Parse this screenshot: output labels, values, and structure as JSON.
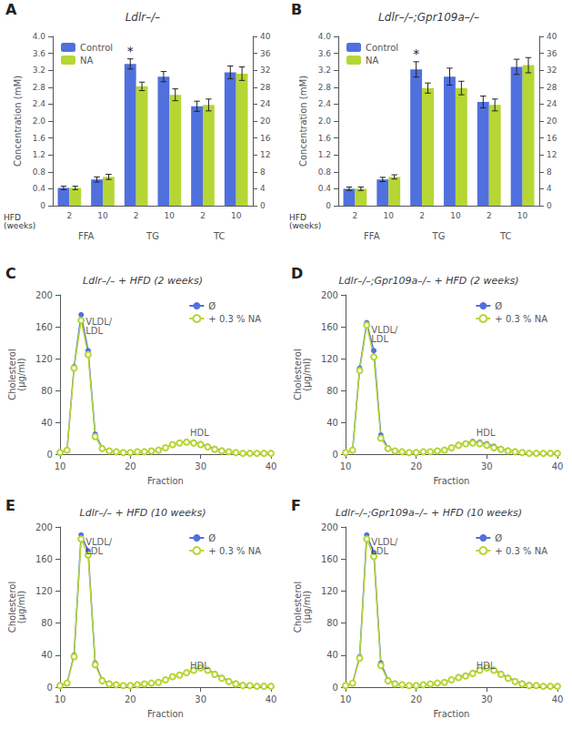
{
  "chart_data": [
    {
      "type": "bar",
      "panel": "A",
      "title": "Ldlr–/–",
      "categories": [
        "2",
        "10",
        "2",
        "10",
        "2",
        "10"
      ],
      "category_groups": [
        "FFA",
        "TG",
        "TC"
      ],
      "xlabel": "HFD\n(weeks)",
      "ylabel": "Concentration (mM)",
      "ylim": [
        0,
        4.0
      ],
      "yticks": [
        0,
        0.4,
        0.8,
        1.2,
        1.6,
        {
          "value": 2,
          "label": "2.0"
        },
        2.4,
        2.8,
        3.2,
        3.6,
        {
          "value": 4,
          "label": "4.0"
        }
      ],
      "y2lim": [
        0,
        40
      ],
      "y2ticks": [
        0,
        4,
        8,
        12,
        16,
        20,
        24,
        28,
        32,
        36,
        40
      ],
      "series": [
        {
          "name": "Control",
          "values": [
            0.42,
            0.62,
            3.35,
            3.05,
            2.35,
            3.15
          ],
          "errors": [
            0.04,
            0.06,
            0.12,
            0.12,
            0.12,
            0.15
          ]
        },
        {
          "name": "NA",
          "values": [
            0.42,
            0.68,
            2.82,
            2.62,
            2.38,
            3.12
          ],
          "errors": [
            0.04,
            0.06,
            0.1,
            0.14,
            0.14,
            0.16
          ]
        }
      ],
      "annotations": [
        {
          "text": "*",
          "series": "Control",
          "index": 2
        }
      ],
      "legend": "upper left",
      "grid": false
    },
    {
      "type": "bar",
      "panel": "B",
      "title": "Ldlr–/–;Gpr109a–/–",
      "categories": [
        "2",
        "10",
        "2",
        "10",
        "2",
        "10"
      ],
      "category_groups": [
        "FFA",
        "TG",
        "TC"
      ],
      "xlabel": "HFD\n(weeks)",
      "ylabel": "Concentration (mM)",
      "ylim": [
        0,
        4.0
      ],
      "yticks": [
        0,
        0.4,
        0.8,
        1.2,
        1.6,
        {
          "value": 2,
          "label": "2.0"
        },
        2.4,
        2.8,
        3.2,
        3.6,
        {
          "value": 4,
          "label": "4.0"
        }
      ],
      "y2lim": [
        0,
        40
      ],
      "y2ticks": [
        0,
        4,
        8,
        12,
        16,
        20,
        24,
        28,
        32,
        36,
        40
      ],
      "series": [
        {
          "name": "Control",
          "values": [
            0.4,
            0.62,
            3.22,
            3.05,
            2.45,
            3.28
          ],
          "errors": [
            0.04,
            0.05,
            0.18,
            0.2,
            0.14,
            0.18
          ]
        },
        {
          "name": "NA",
          "values": [
            0.4,
            0.68,
            2.78,
            2.78,
            2.38,
            3.32
          ],
          "errors": [
            0.04,
            0.05,
            0.12,
            0.16,
            0.14,
            0.18
          ]
        }
      ],
      "annotations": [
        {
          "text": "*",
          "series": "Control",
          "index": 2
        }
      ],
      "legend": "upper left",
      "grid": false
    },
    {
      "type": "line",
      "panel": "C",
      "title": "Ldlr–/– + HFD (2 weeks)",
      "xlabel": "Fraction",
      "ylabel": "Cholesterol\n(μg/ml)",
      "x": [
        10,
        11,
        12,
        13,
        14,
        15,
        16,
        17,
        18,
        19,
        20,
        21,
        22,
        23,
        24,
        25,
        26,
        27,
        28,
        29,
        30,
        31,
        32,
        33,
        34,
        35,
        36,
        37,
        38,
        39,
        40
      ],
      "xlim": [
        10,
        40
      ],
      "xticks": [
        10,
        20,
        30,
        40
      ],
      "ylim": [
        0,
        200
      ],
      "yticks": [
        0,
        40,
        80,
        120,
        160,
        200
      ],
      "series": [
        {
          "name": "Ø",
          "marker": "circle",
          "values": [
            2,
            5,
            110,
            175,
            130,
            25,
            8,
            4,
            3,
            2,
            2,
            3,
            3,
            4,
            5,
            8,
            12,
            14,
            16,
            15,
            13,
            10,
            7,
            5,
            3,
            2,
            1,
            1,
            1,
            1,
            1
          ]
        },
        {
          "name": "+ 0.3 % NA",
          "marker": "open circle",
          "values": [
            2,
            5,
            108,
            168,
            125,
            22,
            7,
            4,
            3,
            2,
            2,
            3,
            3,
            4,
            5,
            8,
            12,
            14,
            15,
            14,
            12,
            9,
            6,
            4,
            3,
            2,
            1,
            1,
            1,
            1,
            1
          ]
        }
      ],
      "annotations": [
        {
          "text": "VLDL/\nLDL",
          "x": 13,
          "y": 175
        },
        {
          "text": "HDL",
          "x": 28.5,
          "y": 20
        }
      ],
      "legend": "upper right",
      "grid": false
    },
    {
      "type": "line",
      "panel": "D",
      "title": "Ldlr–/–;Gpr109a–/– + HFD (2 weeks)",
      "xlabel": "Fraction",
      "ylabel": "Cholesterol\n(μg/ml)",
      "x": [
        10,
        11,
        12,
        13,
        14,
        15,
        16,
        17,
        18,
        19,
        20,
        21,
        22,
        23,
        24,
        25,
        26,
        27,
        28,
        29,
        30,
        31,
        32,
        33,
        34,
        35,
        36,
        37,
        38,
        39,
        40
      ],
      "xlim": [
        10,
        40
      ],
      "xticks": [
        10,
        20,
        30,
        40
      ],
      "ylim": [
        0,
        200
      ],
      "yticks": [
        0,
        40,
        80,
        120,
        160,
        200
      ],
      "series": [
        {
          "name": "Ø",
          "marker": "circle",
          "values": [
            2,
            5,
            108,
            165,
            130,
            24,
            8,
            4,
            3,
            2,
            2,
            3,
            3,
            4,
            5,
            8,
            12,
            14,
            16,
            15,
            13,
            10,
            7,
            5,
            3,
            2,
            1,
            1,
            1,
            1,
            1
          ]
        },
        {
          "name": "+ 0.3 % NA",
          "marker": "open circle",
          "values": [
            2,
            5,
            105,
            162,
            122,
            20,
            7,
            4,
            3,
            2,
            2,
            3,
            3,
            4,
            5,
            8,
            11,
            13,
            14,
            13,
            11,
            8,
            6,
            4,
            3,
            2,
            1,
            1,
            1,
            1,
            1
          ]
        }
      ],
      "annotations": [
        {
          "text": "VLDL/\nLDL",
          "x": 13,
          "y": 165
        },
        {
          "text": "HDL",
          "x": 28.5,
          "y": 20
        }
      ],
      "legend": "upper right",
      "grid": false
    },
    {
      "type": "line",
      "panel": "E",
      "title": "Ldlr–/– + HFD (10 weeks)",
      "xlabel": "Fraction",
      "ylabel": "Cholesterol\n(μg/ml)",
      "x": [
        10,
        11,
        12,
        13,
        14,
        15,
        16,
        17,
        18,
        19,
        20,
        21,
        22,
        23,
        24,
        25,
        26,
        27,
        28,
        29,
        30,
        31,
        32,
        33,
        34,
        35,
        36,
        37,
        38,
        39,
        40
      ],
      "xlim": [
        10,
        40
      ],
      "xticks": [
        10,
        20,
        30,
        40
      ],
      "ylim": [
        0,
        200
      ],
      "yticks": [
        0,
        40,
        80,
        120,
        160,
        200
      ],
      "series": [
        {
          "name": "Ø",
          "marker": "circle",
          "values": [
            2,
            5,
            40,
            190,
            170,
            30,
            9,
            5,
            3,
            2,
            2,
            3,
            4,
            5,
            6,
            9,
            13,
            15,
            18,
            22,
            25,
            22,
            17,
            12,
            8,
            5,
            3,
            2,
            1,
            1,
            1
          ]
        },
        {
          "name": "+ 0.3 % NA",
          "marker": "open circle",
          "values": [
            2,
            5,
            38,
            185,
            165,
            28,
            8,
            4,
            3,
            2,
            2,
            3,
            4,
            5,
            6,
            9,
            13,
            15,
            18,
            21,
            24,
            21,
            16,
            11,
            7,
            4,
            2,
            2,
            1,
            1,
            1
          ]
        }
      ],
      "annotations": [
        {
          "text": "VLDL/\nLDL",
          "x": 13,
          "y": 190
        },
        {
          "text": "HDL",
          "x": 28.5,
          "y": 20
        }
      ],
      "legend": "upper right",
      "grid": false
    },
    {
      "type": "line",
      "panel": "F",
      "title": "Ldlr–/–;Gpr109a–/– + HFD (10 weeks)",
      "xlabel": "Fraction",
      "ylabel": "Cholesterol\n(μg/ml)",
      "x": [
        10,
        11,
        12,
        13,
        14,
        15,
        16,
        17,
        18,
        19,
        20,
        21,
        22,
        23,
        24,
        25,
        26,
        27,
        28,
        29,
        30,
        31,
        32,
        33,
        34,
        35,
        36,
        37,
        38,
        39,
        40
      ],
      "xlim": [
        10,
        40
      ],
      "xticks": [
        10,
        20,
        30,
        40
      ],
      "ylim": [
        0,
        200
      ],
      "yticks": [
        0,
        40,
        80,
        120,
        160,
        200
      ],
      "series": [
        {
          "name": "Ø",
          "marker": "circle",
          "values": [
            2,
            5,
            38,
            190,
            168,
            30,
            9,
            5,
            3,
            2,
            2,
            3,
            4,
            5,
            6,
            9,
            13,
            15,
            18,
            22,
            25,
            22,
            17,
            12,
            8,
            5,
            3,
            2,
            1,
            1,
            1
          ]
        },
        {
          "name": "+ 0.3 % NA",
          "marker": "open circle",
          "values": [
            2,
            5,
            36,
            185,
            163,
            27,
            8,
            4,
            3,
            2,
            2,
            3,
            4,
            5,
            6,
            9,
            12,
            14,
            17,
            21,
            24,
            21,
            16,
            11,
            7,
            4,
            2,
            2,
            1,
            1,
            1
          ]
        }
      ],
      "annotations": [
        {
          "text": "VLDL/\nLDL",
          "x": 13,
          "y": 190
        },
        {
          "text": "HDL",
          "x": 28.5,
          "y": 20
        }
      ],
      "legend": "upper right",
      "grid": false
    }
  ]
}
